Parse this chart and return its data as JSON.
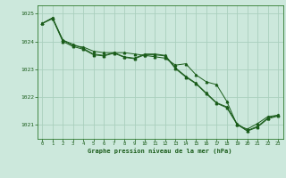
{
  "title": "Graphe pression niveau de la mer (hPa)",
  "background_color": "#cce8dc",
  "grid_color": "#aacfbe",
  "line_color": "#1a5c1a",
  "spine_color": "#2d7a2d",
  "xlim": [
    -0.5,
    23.5
  ],
  "ylim": [
    1020.5,
    1025.3
  ],
  "yticks": [
    1021,
    1022,
    1023,
    1024,
    1025
  ],
  "xticks": [
    0,
    1,
    2,
    3,
    4,
    5,
    6,
    7,
    8,
    9,
    10,
    11,
    12,
    13,
    14,
    15,
    16,
    17,
    18,
    19,
    20,
    21,
    22,
    23
  ],
  "series1": [
    1024.65,
    1024.85,
    1024.05,
    1023.85,
    1023.8,
    1023.65,
    1023.6,
    1023.6,
    1023.6,
    1023.55,
    1023.5,
    1023.45,
    1023.4,
    1023.15,
    1023.2,
    1022.8,
    1022.55,
    1022.45,
    1021.85,
    1021.0,
    1020.85,
    1021.05,
    1021.3,
    1021.35
  ],
  "series2": [
    1024.65,
    1024.85,
    1024.05,
    1023.9,
    1023.75,
    1023.55,
    1023.5,
    1023.6,
    1023.45,
    1023.4,
    1023.55,
    1023.55,
    1023.5,
    1023.05,
    1022.75,
    1022.5,
    1022.15,
    1021.8,
    1021.65,
    1021.05,
    1020.8,
    1020.95,
    1021.25,
    1021.35
  ],
  "series3": [
    1024.65,
    1024.82,
    1024.0,
    1023.82,
    1023.72,
    1023.52,
    1023.48,
    1023.58,
    1023.43,
    1023.38,
    1023.52,
    1023.52,
    1023.48,
    1023.02,
    1022.72,
    1022.48,
    1022.12,
    1021.78,
    1021.62,
    1021.02,
    1020.78,
    1020.92,
    1021.22,
    1021.32
  ]
}
